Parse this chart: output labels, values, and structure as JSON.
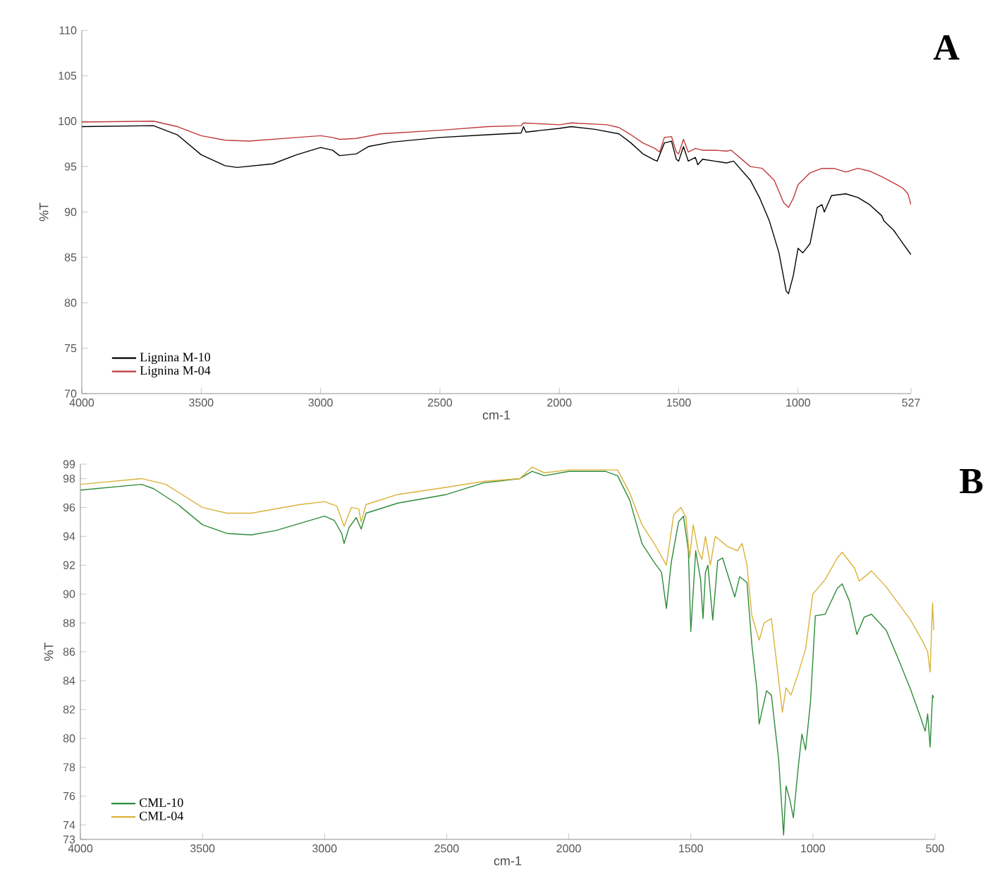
{
  "chart_data": [
    {
      "type": "line",
      "title": "A",
      "xlabel": "cm-1",
      "ylabel": "%T",
      "xlim": [
        4000,
        527
      ],
      "ylim": [
        70,
        110
      ],
      "xticks": [
        4000,
        3500,
        3000,
        2500,
        2000,
        1500,
        1000,
        527
      ],
      "yticks": [
        70,
        75,
        80,
        85,
        90,
        95,
        100,
        105,
        110
      ],
      "legend": "bottom left",
      "series": [
        {
          "name": "Lignina M-10",
          "color": "#000000",
          "x": [
            4000,
            3700,
            3600,
            3500,
            3400,
            3350,
            3200,
            3100,
            3000,
            2950,
            2920,
            2850,
            2800,
            2700,
            2500,
            2300,
            2160,
            2150,
            2140,
            2000,
            1950,
            1850,
            1750,
            1700,
            1650,
            1600,
            1590,
            1560,
            1530,
            1510,
            1500,
            1480,
            1460,
            1430,
            1420,
            1400,
            1350,
            1300,
            1270,
            1200,
            1160,
            1120,
            1080,
            1050,
            1040,
            1020,
            1000,
            980,
            950,
            920,
            900,
            890,
            860,
            800,
            750,
            700,
            650,
            640,
            600,
            560,
            527
          ],
          "values": [
            99.4,
            99.5,
            98.5,
            96.3,
            95.1,
            94.9,
            95.3,
            96.3,
            97.1,
            96.8,
            96.2,
            96.4,
            97.2,
            97.7,
            98.2,
            98.5,
            98.7,
            99.4,
            98.8,
            99.2,
            99.4,
            99.1,
            98.6,
            97.6,
            96.4,
            95.7,
            95.6,
            97.6,
            97.8,
            95.8,
            95.6,
            97.2,
            95.6,
            96.0,
            95.2,
            95.8,
            95.6,
            95.4,
            95.6,
            93.5,
            91.5,
            89.0,
            85.5,
            81.3,
            81.0,
            83.0,
            86.0,
            85.5,
            86.5,
            90.5,
            90.8,
            90.0,
            91.8,
            92.0,
            91.6,
            90.8,
            89.6,
            89.0,
            88.0,
            86.5,
            85.3
          ]
        },
        {
          "name": "Lignina M-04",
          "color": "#c0393b",
          "x": [
            4000,
            3700,
            3600,
            3500,
            3400,
            3300,
            3100,
            3000,
            2950,
            2920,
            2850,
            2750,
            2500,
            2300,
            2160,
            2150,
            2000,
            1950,
            1800,
            1750,
            1700,
            1650,
            1600,
            1580,
            1560,
            1530,
            1510,
            1500,
            1480,
            1460,
            1430,
            1400,
            1350,
            1300,
            1280,
            1200,
            1150,
            1100,
            1060,
            1040,
            1020,
            1000,
            950,
            900,
            850,
            800,
            750,
            700,
            650,
            600,
            560,
            540,
            527
          ],
          "values": [
            99.9,
            100.0,
            99.4,
            98.4,
            97.9,
            97.8,
            98.2,
            98.4,
            98.2,
            98.0,
            98.1,
            98.6,
            99.0,
            99.4,
            99.5,
            99.8,
            99.6,
            99.8,
            99.6,
            99.3,
            98.5,
            97.6,
            97.0,
            96.6,
            98.2,
            98.3,
            96.6,
            96.4,
            98.0,
            96.6,
            97.0,
            96.8,
            96.8,
            96.7,
            96.8,
            95.0,
            94.8,
            93.5,
            91.0,
            90.5,
            91.5,
            93.0,
            94.3,
            94.8,
            94.8,
            94.4,
            94.8,
            94.5,
            93.9,
            93.2,
            92.6,
            92.0,
            90.8
          ]
        }
      ]
    },
    {
      "type": "line",
      "title": "B",
      "xlabel": "cm-1",
      "ylabel": "%T",
      "xlim": [
        4000,
        500
      ],
      "ylim": [
        73,
        99
      ],
      "xticks": [
        4000,
        3500,
        3000,
        2500,
        2000,
        1500,
        1000,
        500
      ],
      "yticks": [
        73,
        74,
        76,
        78,
        80,
        82,
        84,
        86,
        88,
        90,
        92,
        94,
        96,
        98,
        99
      ],
      "legend": "bottom left",
      "series": [
        {
          "name": "CML-10",
          "color": "#2e8b3a",
          "x": [
            4000,
            3750,
            3700,
            3600,
            3500,
            3400,
            3300,
            3200,
            3100,
            3000,
            2960,
            2930,
            2920,
            2900,
            2870,
            2850,
            2830,
            2700,
            2500,
            2350,
            2200,
            2150,
            2100,
            2000,
            1850,
            1800,
            1750,
            1700,
            1650,
            1620,
            1600,
            1580,
            1550,
            1530,
            1510,
            1500,
            1480,
            1460,
            1450,
            1440,
            1430,
            1410,
            1390,
            1370,
            1320,
            1300,
            1270,
            1250,
            1230,
            1220,
            1190,
            1170,
            1140,
            1120,
            1110,
            1095,
            1080,
            1060,
            1045,
            1030,
            1010,
            990,
            950,
            900,
            880,
            850,
            820,
            790,
            760,
            700,
            650,
            600,
            560,
            540,
            530,
            520,
            510,
            505
          ],
          "values": [
            97.2,
            97.6,
            97.3,
            96.2,
            94.8,
            94.2,
            94.1,
            94.4,
            94.9,
            95.4,
            95.1,
            94.2,
            93.5,
            94.6,
            95.3,
            94.5,
            95.6,
            96.3,
            96.9,
            97.7,
            98.0,
            98.5,
            98.2,
            98.5,
            98.5,
            98.2,
            96.5,
            93.5,
            92.2,
            91.5,
            89.0,
            92.2,
            95.0,
            95.4,
            93.0,
            87.4,
            93.0,
            91.0,
            88.3,
            91.5,
            92.0,
            88.2,
            92.3,
            92.5,
            89.8,
            91.2,
            90.8,
            86.5,
            83.5,
            81.0,
            83.3,
            83.0,
            78.5,
            73.3,
            76.7,
            75.8,
            74.5,
            78.0,
            80.3,
            79.2,
            82.5,
            88.5,
            88.6,
            90.4,
            90.7,
            89.5,
            87.2,
            88.4,
            88.6,
            87.5,
            85.5,
            83.4,
            81.5,
            80.5,
            81.7,
            79.4,
            83.0,
            82.8
          ]
        },
        {
          "name": "CML-04",
          "color": "#d9b23a",
          "x": [
            4000,
            3750,
            3650,
            3500,
            3400,
            3300,
            3100,
            3000,
            2950,
            2920,
            2890,
            2860,
            2850,
            2830,
            2700,
            2500,
            2350,
            2200,
            2150,
            2100,
            2000,
            1800,
            1750,
            1700,
            1650,
            1600,
            1570,
            1540,
            1520,
            1505,
            1490,
            1470,
            1455,
            1440,
            1420,
            1400,
            1350,
            1310,
            1290,
            1270,
            1250,
            1220,
            1200,
            1170,
            1140,
            1125,
            1110,
            1090,
            1060,
            1030,
            1000,
            950,
            900,
            880,
            830,
            810,
            760,
            700,
            600,
            550,
            530,
            520,
            510,
            505
          ],
          "values": [
            97.6,
            98.0,
            97.6,
            96.0,
            95.6,
            95.6,
            96.2,
            96.4,
            96.1,
            94.7,
            96.0,
            95.9,
            95.0,
            96.2,
            96.9,
            97.4,
            97.8,
            98.0,
            98.8,
            98.4,
            98.6,
            98.6,
            97.0,
            94.8,
            93.5,
            92.0,
            95.5,
            96.0,
            95.3,
            92.5,
            94.8,
            93.0,
            92.4,
            94.0,
            92.0,
            94.0,
            93.3,
            93.0,
            93.5,
            92.0,
            88.5,
            86.8,
            88.0,
            88.3,
            84.0,
            81.8,
            83.5,
            83.0,
            84.5,
            86.2,
            90.0,
            91.0,
            92.5,
            92.9,
            91.8,
            90.9,
            91.6,
            90.5,
            88.2,
            86.7,
            86.0,
            84.6,
            89.4,
            87.5
          ]
        }
      ]
    }
  ]
}
